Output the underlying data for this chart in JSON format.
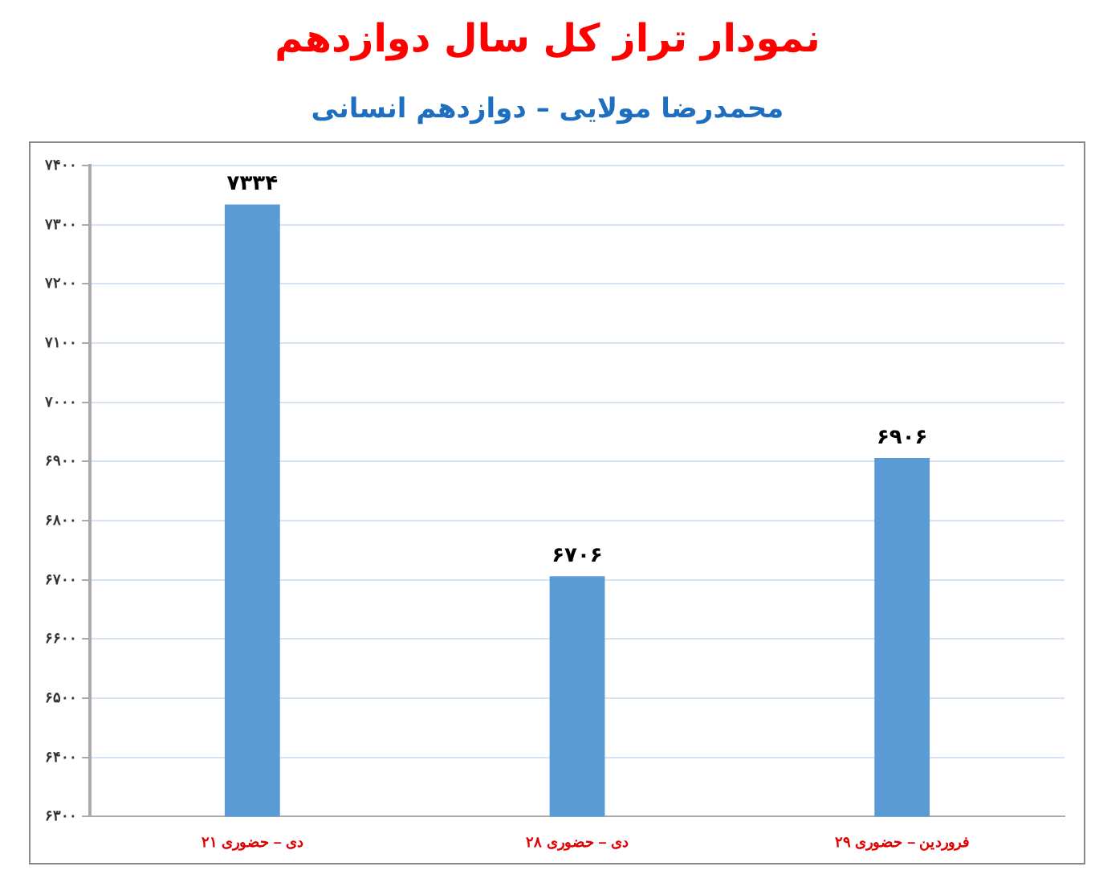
{
  "chart_data": {
    "type": "bar",
    "title": "نمودار تراز کل سال دوازدهم",
    "subtitle": "محمدرضا مولایی – دوازدهم انسانی",
    "categories": [
      "۲۱ دی – حضوری",
      "۲۸ دی – حضوری",
      "۲۹ فروردین – حضوری"
    ],
    "values": [
      7334,
      6706,
      6906
    ],
    "value_labels": [
      "۷۳۳۴",
      "۶۷۰۶",
      "۶۹۰۶"
    ],
    "color": "#5b9bd5",
    "ylim": [
      6300,
      7400
    ],
    "yticks": [
      {
        "value": 6300,
        "label": "۶۳۰۰"
      },
      {
        "value": 6400,
        "label": "۶۴۰۰"
      },
      {
        "value": 6500,
        "label": "۶۵۰۰"
      },
      {
        "value": 6600,
        "label": "۶۶۰۰"
      },
      {
        "value": 6700,
        "label": "۶۷۰۰"
      },
      {
        "value": 6800,
        "label": "۶۸۰۰"
      },
      {
        "value": 6900,
        "label": "۶۹۰۰"
      },
      {
        "value": 7000,
        "label": "۷۰۰۰"
      },
      {
        "value": 7100,
        "label": "۷۱۰۰"
      },
      {
        "value": 7200,
        "label": "۷۲۰۰"
      },
      {
        "value": 7300,
        "label": "۷۳۰۰"
      },
      {
        "value": 7400,
        "label": "۷۴۰۰"
      }
    ],
    "grid": "y"
  }
}
